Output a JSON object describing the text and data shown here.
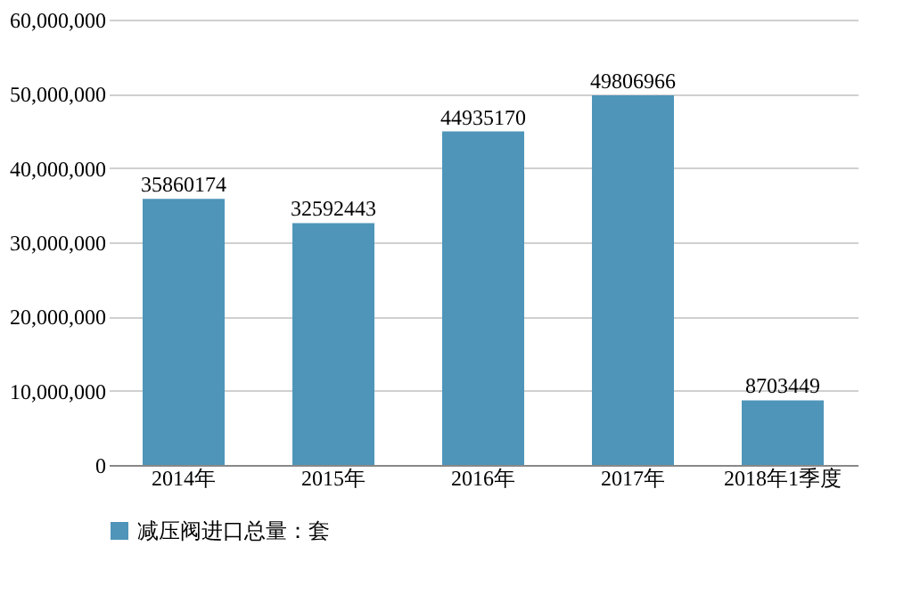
{
  "chart_data": {
    "type": "bar",
    "categories": [
      "2014年",
      "2015年",
      "2016年",
      "2017年",
      "2018年1季度"
    ],
    "series": [
      {
        "name": "减压阀进口总量：套",
        "color": "#4f95b9",
        "values": [
          35860174,
          32592443,
          44935170,
          49806966,
          8703449
        ]
      }
    ],
    "ylim": [
      0,
      60000000
    ],
    "yticks": [
      {
        "value": 0,
        "label": "0"
      },
      {
        "value": 10000000,
        "label": "10,000,000"
      },
      {
        "value": 20000000,
        "label": "20,000,000"
      },
      {
        "value": 30000000,
        "label": "30,000,000"
      },
      {
        "value": 40000000,
        "label": "40,000,000"
      },
      {
        "value": 50000000,
        "label": "50,000,000"
      },
      {
        "value": 60000000,
        "label": "60,000,000"
      }
    ],
    "grid": "y",
    "legend": "bottom",
    "data_labels": true
  }
}
